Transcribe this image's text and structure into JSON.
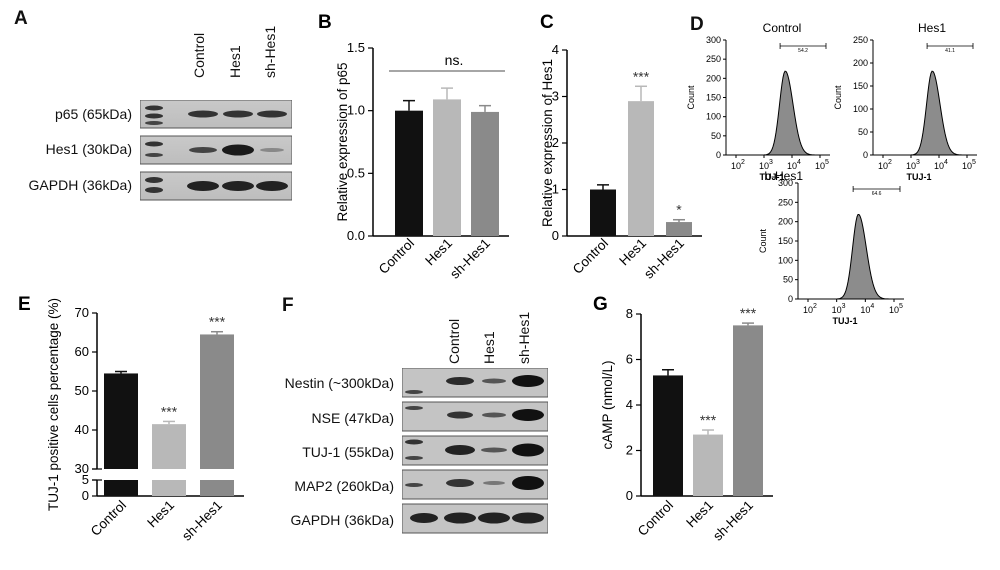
{
  "panels": {
    "A": {
      "letter": "A",
      "lanes": [
        "Control",
        "Hes1",
        "sh-Hes1"
      ],
      "rows": [
        "p65 (65kDa)",
        "Hes1 (30kDa)",
        "GAPDH (36kDa)"
      ]
    },
    "F": {
      "letter": "F",
      "lanes": [
        "Control",
        "Hes1",
        "sh-Hes1"
      ],
      "rows": [
        "Nestin (~300kDa)",
        "NSE (47kDa)",
        "TUJ-1 (55kDa)",
        "MAP2 (260kDa)",
        "GAPDH (36kDa)"
      ]
    },
    "D": {
      "letter": "D",
      "histograms": [
        {
          "title": "Control",
          "xlabel": "TUJ-1",
          "ylabel": "Count",
          "gate": "54.2",
          "yticks": [
            "0",
            "50",
            "100",
            "150",
            "200",
            "250",
            "300"
          ],
          "xticks": [
            "10",
            "10",
            "10",
            "10"
          ],
          "xexp": [
            "2",
            "3",
            "4",
            "5"
          ]
        },
        {
          "title": "Hes1",
          "xlabel": "TUJ-1",
          "ylabel": "Count",
          "gate": "41.1",
          "yticks": [
            "0",
            "50",
            "100",
            "150",
            "200",
            "250"
          ],
          "xticks": [
            "10",
            "10",
            "10",
            "10"
          ],
          "xexp": [
            "2",
            "3",
            "4",
            "5"
          ]
        },
        {
          "title": "h-Hes1",
          "xlabel": "TUJ-1",
          "ylabel": "Count",
          "gate": "64.6",
          "yticks": [
            "0",
            "50",
            "100",
            "150",
            "200",
            "250",
            "300"
          ],
          "xticks": [
            "10",
            "10",
            "10",
            "10"
          ],
          "xexp": [
            "2",
            "3",
            "4",
            "5"
          ]
        }
      ]
    }
  },
  "chart_data": [
    {
      "id": "B",
      "letter": "B",
      "type": "bar",
      "categories": [
        "Control",
        "Hes1",
        "sh-Hes1"
      ],
      "values": [
        1.0,
        1.09,
        0.99
      ],
      "errors": [
        0.08,
        0.09,
        0.05
      ],
      "colors": [
        "#111111",
        "#b8b8b8",
        "#8a8a8a"
      ],
      "significance": [
        "",
        "",
        ""
      ],
      "bracket_label": "ns.",
      "ylabel": "Relative expression of p65",
      "ylim": [
        0,
        1.5
      ],
      "yticks": [
        "0.0",
        "0.5",
        "1.0",
        "1.5"
      ]
    },
    {
      "id": "C",
      "letter": "C",
      "type": "bar",
      "categories": [
        "Control",
        "Hes1",
        "sh-Hes1"
      ],
      "values": [
        1.0,
        2.9,
        0.3
      ],
      "errors": [
        0.1,
        0.32,
        0.05
      ],
      "colors": [
        "#111111",
        "#b8b8b8",
        "#8a8a8a"
      ],
      "significance": [
        "",
        "***",
        "*"
      ],
      "ylabel": "Relative expression of Hes1",
      "ylim": [
        0,
        4
      ],
      "yticks": [
        "0",
        "1",
        "2",
        "3",
        "4"
      ]
    },
    {
      "id": "E",
      "letter": "E",
      "type": "bar",
      "categories": [
        "Control",
        "Hes1",
        "sh-Hes1"
      ],
      "values": [
        54.5,
        41.5,
        64.5
      ],
      "errors": [
        0.5,
        0.7,
        0.7
      ],
      "colors": [
        "#111111",
        "#b8b8b8",
        "#8a8a8a"
      ],
      "significance": [
        "",
        "***",
        "***"
      ],
      "ylabel": "TUJ-1 positive cells percentage (%)",
      "ylim": [
        0,
        70
      ],
      "axis_break": [
        5,
        30
      ],
      "yticks": [
        "0",
        "5",
        "30",
        "40",
        "50",
        "60",
        "70"
      ]
    },
    {
      "id": "G",
      "letter": "G",
      "type": "bar",
      "categories": [
        "Control",
        "Hes1",
        "sh-Hes1"
      ],
      "values": [
        5.3,
        2.7,
        7.5
      ],
      "errors": [
        0.25,
        0.2,
        0.1
      ],
      "colors": [
        "#111111",
        "#b8b8b8",
        "#8a8a8a"
      ],
      "significance": [
        "",
        "***",
        "***"
      ],
      "ylabel": "cAMP (nmol/L)",
      "ylim": [
        0,
        8
      ],
      "yticks": [
        "0",
        "2",
        "4",
        "6",
        "8"
      ]
    }
  ]
}
